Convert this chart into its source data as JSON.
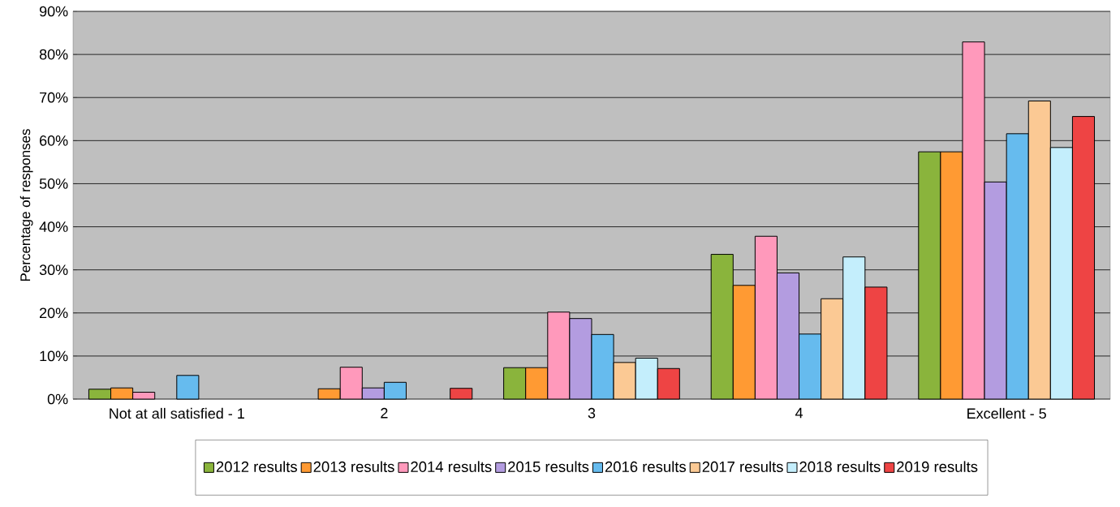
{
  "chart_data": {
    "type": "bar",
    "ylabel": "Percentage of responses",
    "categories": [
      "Not at all satisfied - 1",
      "2",
      "3",
      "4",
      "Excellent - 5"
    ],
    "series": [
      {
        "name": "2012 results",
        "color": "#8ab43c",
        "values": [
          2.3,
          null,
          7.3,
          33.6,
          57.4
        ]
      },
      {
        "name": "2013 results",
        "color": "#ff9a33",
        "values": [
          2.6,
          2.4,
          7.3,
          26.4,
          57.4
        ]
      },
      {
        "name": "2014 results",
        "color": "#ff99bb",
        "values": [
          1.6,
          7.4,
          20.2,
          37.8,
          82.9
        ]
      },
      {
        "name": "2015 results",
        "color": "#b39ce0",
        "values": [
          null,
          2.6,
          18.7,
          29.3,
          50.4
        ]
      },
      {
        "name": "2016 results",
        "color": "#66bbee",
        "values": [
          5.5,
          3.9,
          15.0,
          15.1,
          61.6
        ]
      },
      {
        "name": "2017 results",
        "color": "#fbc994",
        "values": [
          null,
          null,
          8.5,
          23.3,
          69.2
        ]
      },
      {
        "name": "2018 results",
        "color": "#c4eefc",
        "values": [
          null,
          null,
          9.5,
          33.0,
          58.4
        ]
      },
      {
        "name": "2019 results",
        "color": "#ee4444",
        "values": [
          null,
          2.5,
          7.1,
          26.0,
          65.6
        ]
      }
    ],
    "ylim": [
      0,
      90
    ],
    "yticks": [
      {
        "value": 0,
        "label": "0%"
      },
      {
        "value": 10,
        "label": "10%"
      },
      {
        "value": 20,
        "label": "20%"
      },
      {
        "value": 30,
        "label": "30%"
      },
      {
        "value": 40,
        "label": "40%"
      },
      {
        "value": 50,
        "label": "50%"
      },
      {
        "value": 60,
        "label": "60%"
      },
      {
        "value": 70,
        "label": "70%"
      },
      {
        "value": 80,
        "label": "80%"
      },
      {
        "value": 90,
        "label": "90%"
      }
    ],
    "grid": "y",
    "legend": "bottom"
  }
}
